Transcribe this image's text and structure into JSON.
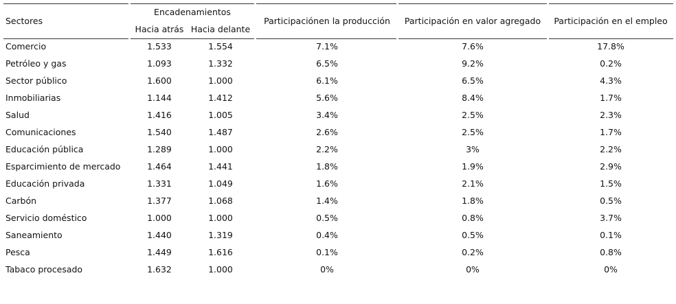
{
  "header": {
    "sectors": "Sectores",
    "linkages": "Encadenamientos",
    "backward": "Hacia atrás",
    "forward": "Hacia delante",
    "production": "Participaciónen la producción",
    "value_added": "Participación en valor agregado",
    "employment": "Participación en el empleo"
  },
  "table": {
    "rows": [
      [
        "Comercio",
        "1.533",
        "1.554",
        "7.1%",
        "7.6%",
        "17.8%"
      ],
      [
        "Petróleo y gas",
        "1.093",
        "1.332",
        "6.5%",
        "9.2%",
        "0.2%"
      ],
      [
        "Sector público",
        "1.600",
        "1.000",
        "6.1%",
        "6.5%",
        "4.3%"
      ],
      [
        "Inmobiliarias",
        "1.144",
        "1.412",
        "5.6%",
        "8.4%",
        "1.7%"
      ],
      [
        "Salud",
        "1.416",
        "1.005",
        "3.4%",
        "2.5%",
        "2.3%"
      ],
      [
        "Comunicaciones",
        "1.540",
        "1.487",
        "2.6%",
        "2.5%",
        "1.7%"
      ],
      [
        "Educación pública",
        "1.289",
        "1.000",
        "2.2%",
        "3%",
        "2.2%"
      ],
      [
        "Esparcimiento de mercado",
        "1.464",
        "1.441",
        "1.8%",
        "1.9%",
        "2.9%"
      ],
      [
        "Educación privada",
        "1.331",
        "1.049",
        "1.6%",
        "2.1%",
        "1.5%"
      ],
      [
        "Carbón",
        "1.377",
        "1.068",
        "1.4%",
        "1.8%",
        "0.5%"
      ],
      [
        "Servicio doméstico",
        "1.000",
        "1.000",
        "0.5%",
        "0.8%",
        "3.7%"
      ],
      [
        "Saneamiento",
        "1.440",
        "1.319",
        "0.4%",
        "0.5%",
        "0.1%"
      ],
      [
        "Pesca",
        "1.449",
        "1.616",
        "0.1%",
        "0.2%",
        "0.8%"
      ],
      [
        "Tabaco procesado",
        "1.632",
        "1.000",
        "0%",
        "0%",
        "0%"
      ]
    ]
  }
}
